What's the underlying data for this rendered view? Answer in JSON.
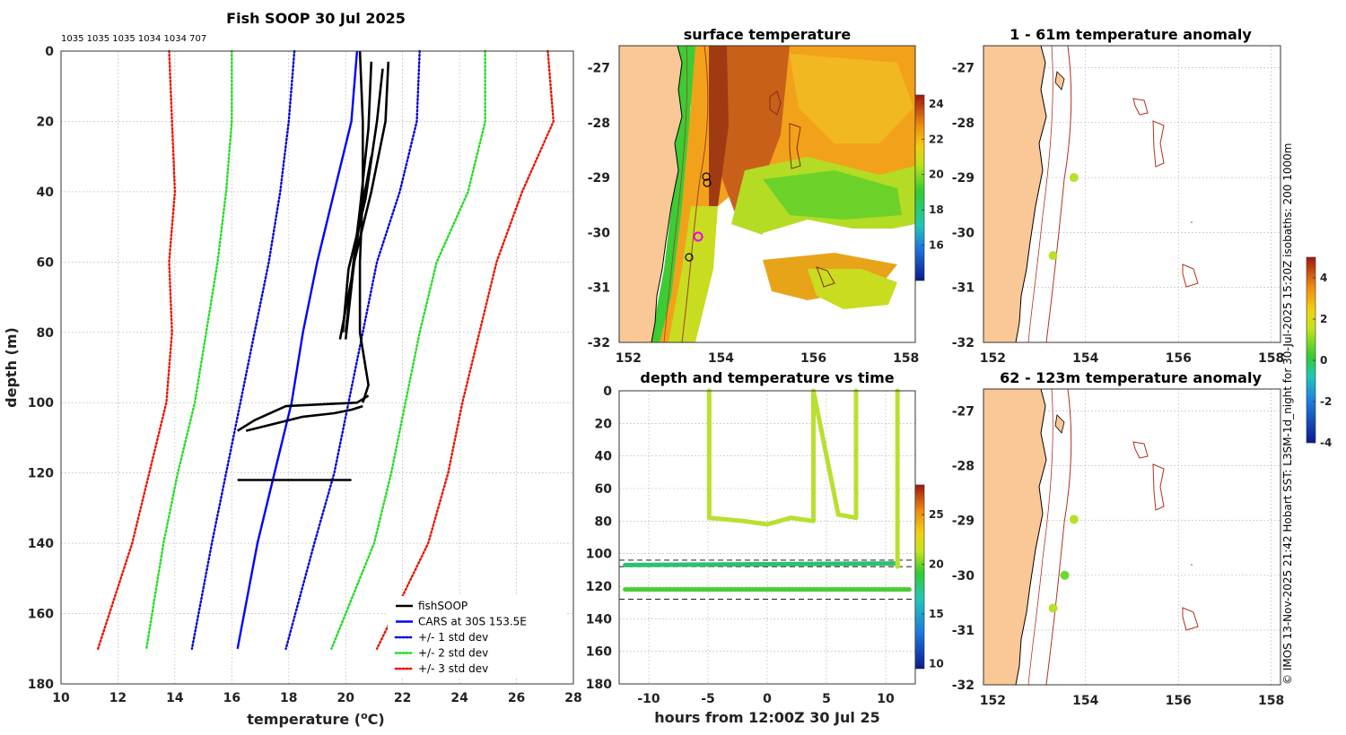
{
  "profile_panel": {
    "title": "Fish SOOP 30 Jul 2025",
    "counts_label": "1035 1035 1035 1034 1034 707",
    "xlabel": "temperature (",
    "xlabel_sup": "o",
    "xlabel_unit": "C)",
    "ylabel": "depth (m)"
  },
  "sst_panel": {
    "title": "surface temperature"
  },
  "anom1_panel": {
    "title": "1 - 61m temperature anomaly"
  },
  "anom2_panel": {
    "title": "62 - 123m temperature anomaly"
  },
  "time_panel": {
    "title": "depth and temperature vs time",
    "xlabel": "hours from 12:00Z 30 Jul 25"
  },
  "footer": {
    "credit": "© IMOS 13-Nov-2025 21:42 Hobart SST: L3SM-1d_night for 30-Jul-2025 15:20Z isobaths: 200  1000m"
  },
  "colors": {
    "land": "#f9c896",
    "fishsoop": "#000000",
    "cars": "#0000ff",
    "std1": "#0000dd",
    "std2": "#22dd22",
    "std3": "#ee1100",
    "isobath": "#b03020",
    "marker_magenta": "#ee00ee"
  },
  "chart_data": [
    {
      "id": "profile",
      "type": "line",
      "title": "Fish SOOP 30 Jul 2025",
      "xlabel": "temperature (oC)",
      "ylabel": "depth (m)",
      "xlim": [
        10,
        28
      ],
      "ylim": [
        180,
        0
      ],
      "xticks": [
        10,
        12,
        14,
        16,
        18,
        20,
        22,
        24,
        26,
        28
      ],
      "yticks": [
        0,
        20,
        40,
        60,
        80,
        100,
        120,
        140,
        160,
        180
      ],
      "legend_position": "bottom-right",
      "legend": [
        {
          "label": "fishSOOP",
          "style": "solid",
          "color": "#000000"
        },
        {
          "label": "CARS at 30S 153.5E",
          "style": "solid",
          "color": "#0000ff"
        },
        {
          "label": "+/- 1 std dev",
          "style": "dotted",
          "color": "#0000dd"
        },
        {
          "label": "+/- 2 std dev",
          "style": "dotted",
          "color": "#22dd22"
        },
        {
          "label": "+/- 3 std dev",
          "style": "dotted",
          "color": "#ee1100"
        }
      ],
      "depths": [
        0,
        20,
        40,
        60,
        80,
        100,
        120,
        140,
        170
      ],
      "cars_mean": [
        20.4,
        20.2,
        19.6,
        19.0,
        18.5,
        18.1,
        17.5,
        16.9,
        16.2
      ],
      "std1_minus": [
        18.2,
        18.0,
        17.7,
        17.3,
        16.8,
        16.3,
        15.8,
        15.3,
        14.6
      ],
      "std1_plus": [
        22.6,
        22.5,
        21.9,
        21.1,
        20.6,
        20.1,
        19.6,
        18.9,
        17.9
      ],
      "std2_minus": [
        16.0,
        16.0,
        15.8,
        15.5,
        15.1,
        14.7,
        14.1,
        13.6,
        13.0
      ],
      "std2_plus": [
        24.9,
        24.9,
        24.3,
        23.2,
        22.6,
        22.1,
        21.6,
        21.0,
        19.5
      ],
      "std3_minus": [
        13.8,
        13.9,
        14.0,
        13.8,
        13.9,
        13.7,
        13.1,
        12.5,
        11.3
      ],
      "std3_plus": [
        27.1,
        27.3,
        26.2,
        25.3,
        24.7,
        24.1,
        23.6,
        22.9,
        21.1
      ],
      "fishsoop_profiles": [
        {
          "temp": [
            20.5,
            20.6,
            20.6,
            20.5,
            20.5,
            20.8,
            20.6
          ],
          "depth": [
            0,
            20,
            40,
            60,
            80,
            95,
            100
          ]
        },
        {
          "temp": [
            21.5,
            21.4,
            20.9,
            20.3,
            20.0
          ],
          "depth": [
            3,
            20,
            40,
            60,
            82
          ]
        },
        {
          "temp": [
            21.3,
            21.1,
            20.7,
            20.1,
            19.9
          ],
          "depth": [
            5,
            20,
            42,
            62,
            80
          ]
        },
        {
          "temp": [
            20.9,
            20.8,
            20.5,
            20.2,
            19.8
          ],
          "depth": [
            3,
            22,
            45,
            65,
            82
          ]
        },
        {
          "temp": [
            20.9,
            20.5,
            20.2,
            20.0
          ],
          "depth": [
            30,
            48,
            66,
            80
          ]
        },
        {
          "temp": [
            20.8,
            20.4,
            17.9,
            16.8,
            16.2
          ],
          "depth": [
            98,
            100,
            101,
            105,
            108
          ]
        },
        {
          "temp": [
            20.6,
            20.2,
            19.6,
            18.5,
            17.5,
            16.5
          ],
          "depth": [
            101,
            102,
            103,
            104,
            106,
            108
          ]
        },
        {
          "temp": [
            16.2,
            20.2
          ],
          "depth": [
            122,
            122
          ]
        }
      ]
    },
    {
      "id": "surface_temperature",
      "type": "heatmap",
      "title": "surface temperature",
      "xlim": [
        151.8,
        158.2
      ],
      "ylim": [
        -32,
        -26.6
      ],
      "xticks": [
        152,
        154,
        156,
        158
      ],
      "yticks": [
        -27,
        -28,
        -29,
        -30,
        -31,
        -32
      ],
      "colorbar": {
        "min": 14,
        "max": 24.5,
        "ticks": [
          16,
          18,
          20,
          22,
          24
        ]
      }
    },
    {
      "id": "anomaly_1_61m",
      "type": "scatter",
      "title": "1 - 61m temperature anomaly",
      "xlim": [
        151.8,
        158.2
      ],
      "ylim": [
        -32,
        -26.6
      ],
      "xticks": [
        152,
        154,
        156,
        158
      ],
      "yticks": [
        -27,
        -28,
        -29,
        -30,
        -31,
        -32
      ],
      "colorbar": {
        "min": -4,
        "max": 5,
        "ticks": [
          -4,
          -2,
          0,
          2,
          4
        ]
      },
      "points": [
        {
          "lon": 153.75,
          "lat": -29.0,
          "anomaly": 1.0
        },
        {
          "lon": 153.3,
          "lat": -30.42,
          "anomaly": 1.2
        }
      ]
    },
    {
      "id": "anomaly_62_123m",
      "type": "scatter",
      "title": "62 - 123m temperature anomaly",
      "xlim": [
        151.8,
        158.2
      ],
      "ylim": [
        -32,
        -26.6
      ],
      "xticks": [
        152,
        154,
        156,
        158
      ],
      "yticks": [
        -27,
        -28,
        -29,
        -30,
        -31,
        -32
      ],
      "points": [
        {
          "lon": 153.75,
          "lat": -28.98,
          "anomaly": 1.0
        },
        {
          "lon": 153.55,
          "lat": -30.0,
          "anomaly": 0.3
        },
        {
          "lon": 153.3,
          "lat": -30.6,
          "anomaly": 1.2
        }
      ]
    },
    {
      "id": "depth_temperature_vs_time",
      "type": "scatter",
      "title": "depth and temperature vs time",
      "xlabel": "hours from 12:00Z 30 Jul 25",
      "xlim": [
        -12.5,
        12.5
      ],
      "ylim": [
        180,
        0
      ],
      "xticks": [
        -10,
        -5,
        0,
        5,
        10
      ],
      "yticks": [
        0,
        20,
        40,
        60,
        80,
        100,
        120,
        140,
        160,
        180
      ],
      "reference_depths": [
        104,
        108,
        128
      ],
      "colorbar": {
        "min": 9.5,
        "max": 28,
        "ticks": [
          10,
          15,
          20,
          25
        ]
      },
      "tracks": [
        {
          "hours": [
            -4.9,
            -4.9,
            -2,
            0,
            2,
            3.9,
            3.9,
            6,
            7.5,
            7.5
          ],
          "depth": [
            0,
            78,
            80,
            82,
            78,
            80,
            0,
            76,
            78,
            0
          ],
          "temp": 20.5
        },
        {
          "hours": [
            -12,
            11
          ],
          "depth": [
            107,
            106
          ],
          "temp": 18.0
        },
        {
          "hours": [
            -12,
            12
          ],
          "depth": [
            122,
            122
          ],
          "temp": 18.5
        },
        {
          "hours": [
            11,
            11
          ],
          "depth": [
            0,
            108
          ],
          "temp": 21.0
        }
      ]
    }
  ]
}
